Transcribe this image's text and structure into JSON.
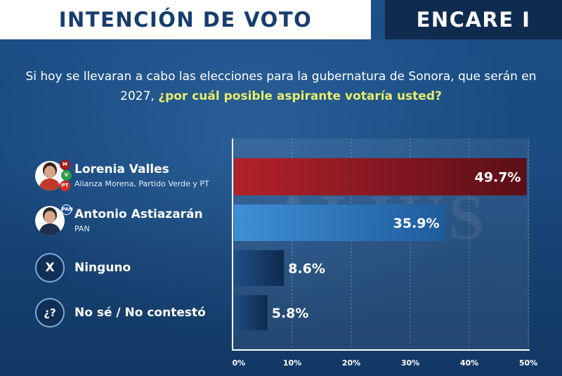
{
  "header": {
    "title": "INTENCIÓN DE VOTO",
    "badge": "ENCARE I"
  },
  "question": {
    "text": "Si hoy se llevaran a cabo las elecciones para la gubernatura de Sonora, que serán en 2027,",
    "highlight": "¿por cuál posible aspirante votaría usted?"
  },
  "watermark": "ALIUS",
  "rows": [
    {
      "name": "Lorenia Valles",
      "party": "Alianza Morena, Partido Verde y PT",
      "badges": [
        "morena",
        "PVEM",
        "PT"
      ]
    },
    {
      "name": "Antonio Astiazarán",
      "party": "PAN",
      "badges": [
        "PAN"
      ]
    },
    {
      "name": "Ninguno",
      "symbol": "X"
    },
    {
      "name": "No sé / No contestó",
      "symbol": "¿?"
    }
  ],
  "colors": {
    "bar1": "#b3222a",
    "bar2": "#3f8fd6",
    "bar3": "#1e4f86",
    "bar4": "#1e4f86"
  },
  "chart_data": {
    "type": "bar",
    "orientation": "horizontal",
    "categories": [
      "Lorenia Valles",
      "Antonio Astiazarán",
      "Ninguno",
      "No sé / No contestó"
    ],
    "values": [
      49.7,
      35.9,
      8.6,
      5.8
    ],
    "value_labels": [
      "49.7%",
      "35.9%",
      "8.6%",
      "5.8%"
    ],
    "xlim": [
      0,
      50
    ],
    "xticks": [
      0,
      10,
      20,
      30,
      40,
      50
    ],
    "xtick_labels": [
      "0%",
      "10%",
      "20%",
      "30%",
      "40%",
      "50%"
    ],
    "grid": true,
    "title": "INTENCIÓN DE VOTO"
  }
}
